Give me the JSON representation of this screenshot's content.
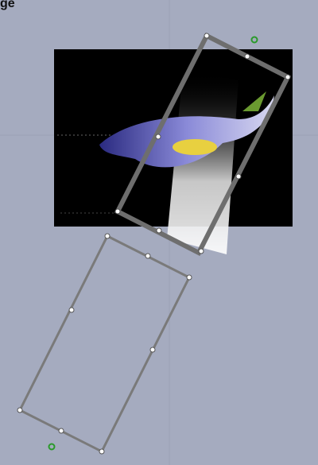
{
  "header": {
    "label": "ge"
  }
}
